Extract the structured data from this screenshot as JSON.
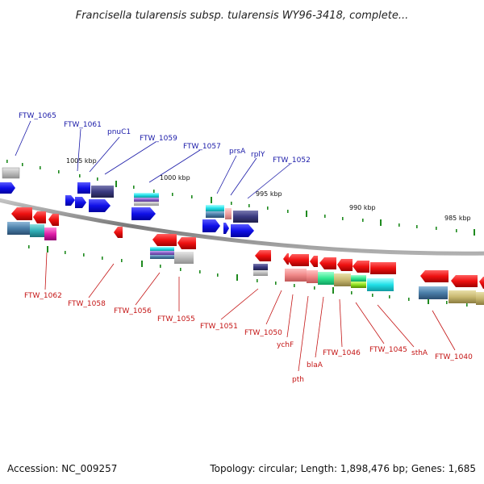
{
  "title": "Francisella tularensis subsp. tularensis WY96-3418, complete...",
  "footer": {
    "accession": "Accession: NC_009257",
    "topology": "Topology: circular; Length: 1,898,476 bp; Genes: 1,685"
  },
  "colors": {
    "forward_gene": "#1010e8",
    "reverse_gene": "#e81010",
    "top_label": "#1a1aa8",
    "bottom_label": "#c41414",
    "tick": "#1e8a1e",
    "backbone": "#8a8a8a"
  },
  "tick_labels": [
    "1005 kbp",
    "1000 kbp",
    "995 kbp",
    "990 kbp",
    "985 kbp"
  ],
  "top_labels": [
    "FTW_1065",
    "FTW_1061",
    "pnuC1",
    "FTW_1059",
    "FTW_1057",
    "prsA",
    "rplY",
    "FTW_1052"
  ],
  "bottom_labels": [
    "FTW_1062",
    "FTW_1058",
    "FTW_1056",
    "FTW_1055",
    "FTW_1051",
    "FTW_1050",
    "ychF",
    "pth",
    "blaA",
    "FTW_1046",
    "FTW_1045",
    "sthA",
    "FTW_1040"
  ]
}
